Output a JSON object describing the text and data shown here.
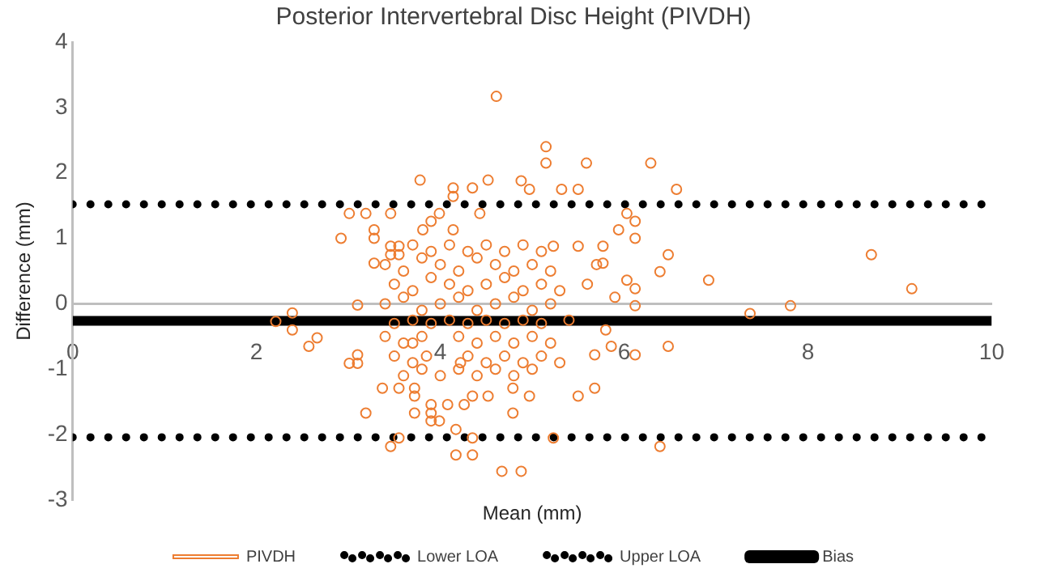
{
  "chart_data": {
    "type": "scatter",
    "title": "Posterior Intervertebral Disc Height (PIVDH)",
    "xlabel": "Mean (mm)",
    "ylabel": "Difference (mm)",
    "xlim": [
      0,
      10
    ],
    "xticks": [
      0,
      2,
      4,
      6,
      8,
      10
    ],
    "ylim": [
      -3,
      4
    ],
    "yticks": [
      -3,
      -2,
      -1,
      0,
      1,
      2,
      3,
      4
    ],
    "grid": false,
    "legend": "bottom",
    "series": [
      {
        "name": "PIVDH",
        "type": "scatter",
        "marker": "circle",
        "color": "#ed7d31",
        "x": [
          4.61,
          5.15,
          5.15,
          5.59,
          6.29,
          6.57,
          8.69,
          9.13,
          6.92,
          6.48,
          6.39,
          7.81,
          7.37,
          6.48,
          6.12,
          5.86,
          5.68,
          5.68,
          5.5,
          6.39,
          5.23,
          4.88,
          4.67,
          6.12,
          6.12,
          6.03,
          5.94,
          5.77,
          5.77,
          6.03,
          6.12,
          6.12,
          5.5,
          5.23,
          5.32,
          5.5,
          4.88,
          4.97,
          2.92,
          3.01,
          3.19,
          3.46,
          3.28,
          3.28,
          3.46,
          3.55,
          3.46,
          3.55,
          3.28,
          3.1,
          2.39,
          2.21,
          2.39,
          2.57,
          2.66,
          3.01,
          3.1,
          3.1,
          3.78,
          4.35,
          4.14,
          4.14,
          4.52,
          3.99,
          3.81,
          4.14,
          4.43,
          3.9,
          3.19,
          3.46,
          3.55,
          4.17,
          4.17,
          4.35,
          4.35,
          3.9,
          3.99,
          3.9,
          3.9,
          3.72,
          3.72,
          3.72,
          3.55,
          3.37,
          4.08,
          4.26,
          4.35,
          4.52,
          4.79,
          4.79,
          4.97,
          3.4,
          3.6,
          3.8,
          4.0,
          4.2,
          4.4,
          4.6,
          4.8,
          5.0,
          5.2,
          3.5,
          3.7,
          3.9,
          4.1,
          4.3,
          4.5,
          4.7,
          4.9,
          5.1,
          5.3,
          3.4,
          3.6,
          3.8,
          4.0,
          4.2,
          4.4,
          4.6,
          4.8,
          5.0,
          5.2,
          3.5,
          3.7,
          3.9,
          4.1,
          4.3,
          4.5,
          4.7,
          4.9,
          5.1,
          5.4,
          3.4,
          3.6,
          3.8,
          3.7,
          4.2,
          4.4,
          4.6,
          4.8,
          5.0,
          5.2,
          3.5,
          3.7,
          3.85,
          4.22,
          4.3,
          4.5,
          4.7,
          4.9,
          5.1,
          5.3,
          3.6,
          3.8,
          4.0,
          4.2,
          4.4,
          4.6,
          4.8,
          5.0,
          3.7,
          3.9,
          4.1,
          4.3,
          4.5,
          4.7,
          4.9,
          5.1,
          5.6,
          5.8,
          5.7,
          5.9
        ],
        "values": [
          3.17,
          2.4,
          2.15,
          2.15,
          2.15,
          1.75,
          0.75,
          0.23,
          0.36,
          0.75,
          0.49,
          -0.03,
          -0.15,
          -0.65,
          -0.78,
          -0.65,
          -0.78,
          -1.29,
          -1.41,
          -2.18,
          -2.05,
          -2.56,
          -2.56,
          1.0,
          1.26,
          1.38,
          1.13,
          0.88,
          0.62,
          0.36,
          0.23,
          -0.03,
          0.88,
          0.88,
          1.75,
          1.75,
          1.88,
          1.75,
          1.0,
          1.38,
          1.38,
          1.38,
          1.13,
          1.0,
          0.88,
          0.88,
          0.75,
          0.75,
          0.62,
          -0.02,
          -0.14,
          -0.27,
          -0.4,
          -0.65,
          -0.52,
          -0.91,
          -0.91,
          -0.78,
          1.89,
          1.77,
          1.77,
          1.64,
          1.89,
          1.38,
          1.13,
          1.13,
          1.38,
          1.26,
          -1.67,
          -2.18,
          -2.05,
          -1.92,
          -2.31,
          -2.31,
          -2.05,
          -1.79,
          -1.79,
          -1.67,
          -1.54,
          -1.67,
          -1.41,
          -1.29,
          -1.29,
          -1.29,
          -1.54,
          -1.54,
          -1.41,
          -1.41,
          -1.29,
          -1.67,
          -1.41,
          0.6,
          0.5,
          0.7,
          0.6,
          0.5,
          0.7,
          0.6,
          0.5,
          0.6,
          0.5,
          0.3,
          0.2,
          0.4,
          0.3,
          0.2,
          0.3,
          0.4,
          0.2,
          0.3,
          0.2,
          0.0,
          0.1,
          -0.1,
          0.0,
          0.1,
          -0.1,
          0.0,
          0.1,
          -0.1,
          0.0,
          -0.3,
          -0.25,
          -0.3,
          -0.25,
          -0.3,
          -0.25,
          -0.3,
          -0.25,
          -0.3,
          -0.25,
          -0.5,
          -0.6,
          -0.5,
          -0.6,
          -0.5,
          -0.6,
          -0.5,
          -0.6,
          -0.5,
          -0.6,
          -0.8,
          -0.9,
          -0.8,
          -0.9,
          -0.8,
          -0.9,
          -0.8,
          -0.9,
          -0.8,
          -0.9,
          -1.1,
          -1.0,
          -1.1,
          -1.0,
          -1.1,
          -1.0,
          -1.1,
          -1.0,
          0.9,
          0.8,
          0.9,
          0.8,
          0.9,
          0.8,
          0.9,
          0.8,
          0.3,
          -0.4,
          0.6,
          0.1
        ]
      },
      {
        "name": "Lower LOA",
        "type": "line",
        "marker": "none",
        "line_style": "dotted",
        "color": "#000000",
        "x": [
          0,
          10
        ],
        "values": [
          -2.04,
          -2.04
        ]
      },
      {
        "name": "Upper LOA",
        "type": "line",
        "marker": "none",
        "line_style": "dotted",
        "color": "#000000",
        "x": [
          0,
          10
        ],
        "values": [
          1.52,
          1.52
        ]
      },
      {
        "name": "Bias",
        "type": "line",
        "marker": "none",
        "line_style": "solid",
        "color": "#000000",
        "x": [
          0,
          10
        ],
        "values": [
          -0.26,
          -0.26
        ]
      }
    ]
  }
}
